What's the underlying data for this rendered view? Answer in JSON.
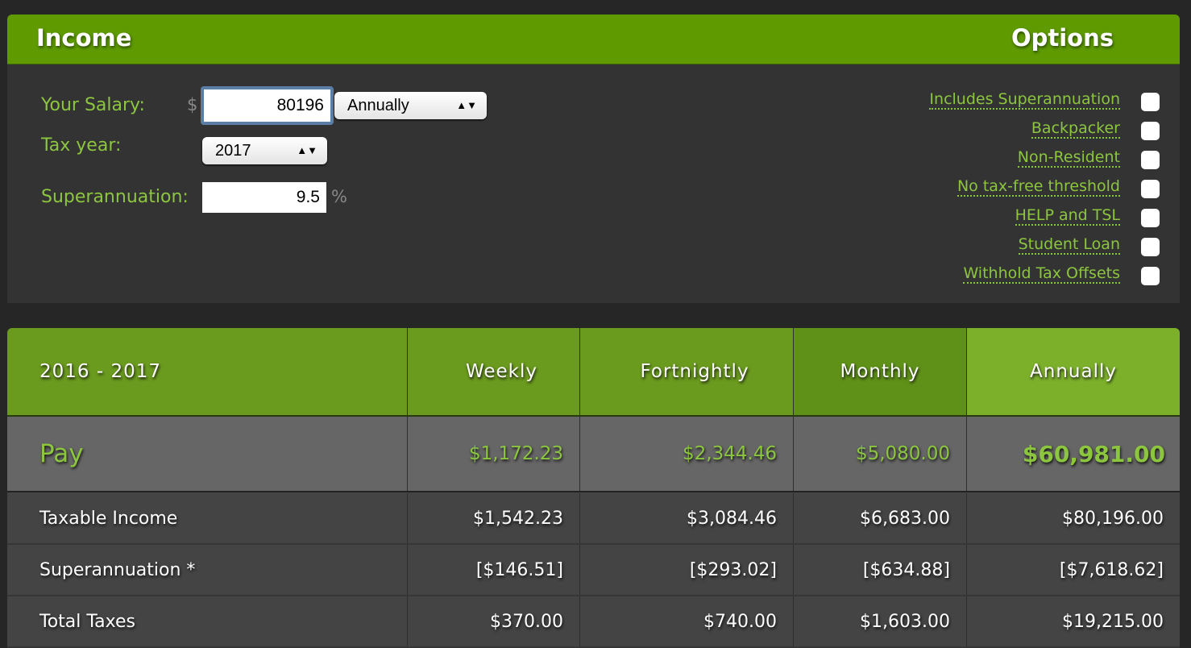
{
  "income": {
    "title": "Income",
    "options_title": "Options",
    "salary_label": "Your Salary:",
    "currency": "$",
    "salary_value": "80196",
    "period_selected": "Annually",
    "tax_year_label": "Tax year:",
    "tax_year_selected": "2017",
    "super_label": "Superannuation:",
    "super_value": "9.5",
    "percent": "%"
  },
  "options": [
    {
      "label": "Includes Superannuation",
      "checked": false
    },
    {
      "label": "Backpacker",
      "checked": false
    },
    {
      "label": "Non-Resident",
      "checked": false
    },
    {
      "label": "No tax-free threshold",
      "checked": false
    },
    {
      "label": "HELP and TSL",
      "checked": false
    },
    {
      "label": "Student Loan",
      "checked": false
    },
    {
      "label": "Withhold Tax Offsets",
      "checked": false
    }
  ],
  "table": {
    "headers": [
      "2016 - 2017",
      "Weekly",
      "Fortnightly",
      "Monthly",
      "Annually"
    ],
    "rows": [
      [
        "Pay",
        "$1,172.23",
        "$2,344.46",
        "$5,080.00",
        "$60,981.00"
      ],
      [
        "Taxable Income",
        "$1,542.23",
        "$3,084.46",
        "$6,683.00",
        "$80,196.00"
      ],
      [
        "Superannuation *",
        "[$146.51]",
        "[$293.02]",
        "[$634.88]",
        "[$7,618.62]"
      ],
      [
        "Total Taxes",
        "$370.00",
        "$740.00",
        "$1,603.00",
        "$19,215.00"
      ]
    ]
  },
  "colors": {
    "accent": "#5e9a00",
    "label_green": "#8cc63f"
  }
}
